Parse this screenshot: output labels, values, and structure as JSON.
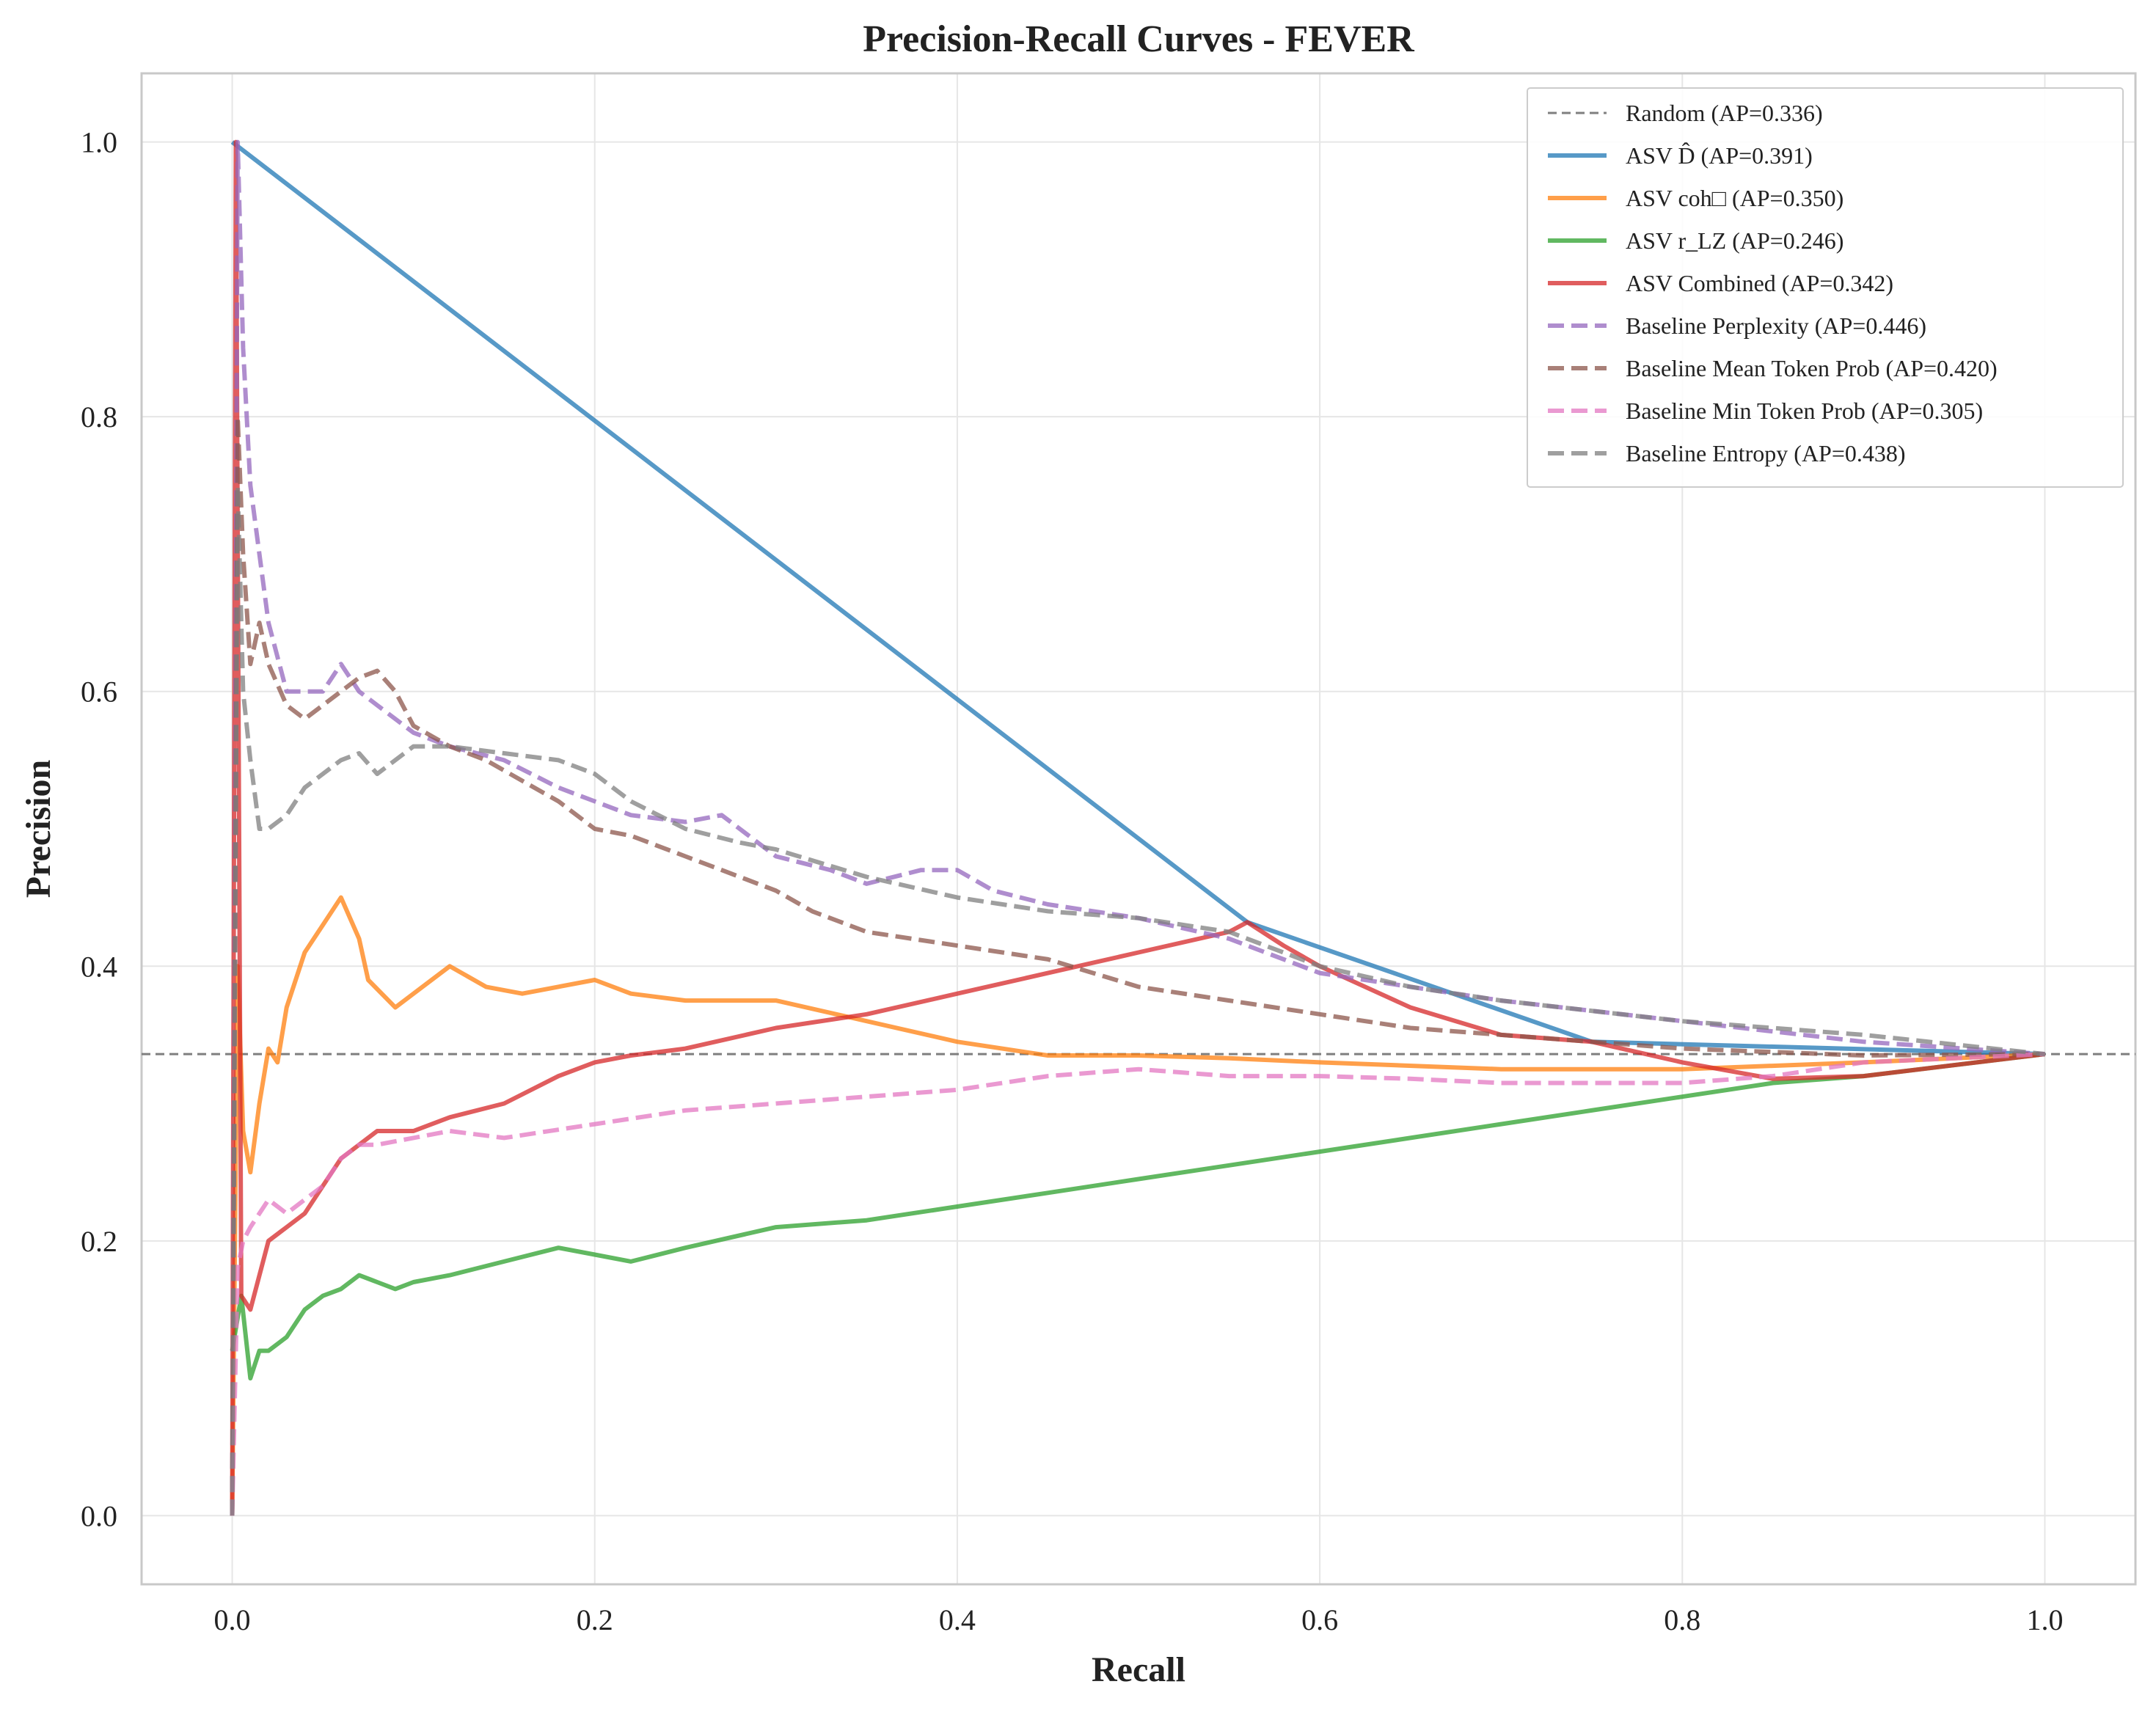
{
  "chart_data": {
    "type": "line",
    "title": "Precision-Recall Curves - FEVER",
    "xlabel": "Recall",
    "ylabel": "Precision",
    "xlim": [
      -0.05,
      1.05
    ],
    "ylim": [
      -0.05,
      1.05
    ],
    "xticks": [
      0.0,
      0.2,
      0.4,
      0.6,
      0.8,
      1.0
    ],
    "yticks": [
      0.0,
      0.2,
      0.4,
      0.6,
      0.8,
      1.0
    ],
    "xtick_labels": [
      "0.0",
      "0.2",
      "0.4",
      "0.6",
      "0.8",
      "1.0"
    ],
    "ytick_labels": [
      "0.0",
      "0.2",
      "0.4",
      "0.6",
      "0.8",
      "1.0"
    ],
    "grid": true,
    "legend_position": "top-right",
    "series": [
      {
        "name": "Random (AP=0.336)",
        "color": "#7f7f7f",
        "style": "dashed-thin",
        "x": [
          -0.05,
          1.05
        ],
        "y": [
          0.336,
          0.336
        ]
      },
      {
        "name": "ASV D̂ (AP=0.391)",
        "color": "#1f77b4",
        "style": "solid",
        "x": [
          0.0,
          0.56,
          0.75,
          1.0
        ],
        "y": [
          1.0,
          0.432,
          0.345,
          0.336
        ]
      },
      {
        "name": "ASV coh□ (AP=0.350)",
        "color": "#ff7f0e",
        "style": "solid",
        "x": [
          0.0,
          0.003,
          0.006,
          0.01,
          0.015,
          0.02,
          0.025,
          0.03,
          0.04,
          0.05,
          0.06,
          0.07,
          0.075,
          0.09,
          0.1,
          0.12,
          0.14,
          0.16,
          0.2,
          0.22,
          0.25,
          0.3,
          0.35,
          0.4,
          0.45,
          0.5,
          0.55,
          0.6,
          0.7,
          0.8,
          0.9,
          1.0
        ],
        "y": [
          0.0,
          0.4,
          0.28,
          0.25,
          0.3,
          0.34,
          0.33,
          0.37,
          0.41,
          0.43,
          0.45,
          0.42,
          0.39,
          0.37,
          0.38,
          0.4,
          0.385,
          0.38,
          0.39,
          0.38,
          0.375,
          0.375,
          0.36,
          0.345,
          0.335,
          0.335,
          0.333,
          0.33,
          0.325,
          0.325,
          0.33,
          0.336
        ]
      },
      {
        "name": "ASV r_LZ (AP=0.246)",
        "color": "#2ca02c",
        "style": "solid",
        "x": [
          0.0,
          0.005,
          0.01,
          0.015,
          0.02,
          0.03,
          0.04,
          0.05,
          0.06,
          0.07,
          0.08,
          0.09,
          0.1,
          0.12,
          0.15,
          0.18,
          0.2,
          0.22,
          0.25,
          0.3,
          0.35,
          0.4,
          0.45,
          0.5,
          0.55,
          0.6,
          0.65,
          0.7,
          0.75,
          0.8,
          0.85,
          0.9,
          1.0
        ],
        "y": [
          0.12,
          0.16,
          0.1,
          0.12,
          0.12,
          0.13,
          0.15,
          0.16,
          0.165,
          0.175,
          0.17,
          0.165,
          0.17,
          0.175,
          0.185,
          0.195,
          0.19,
          0.185,
          0.195,
          0.21,
          0.215,
          0.225,
          0.235,
          0.245,
          0.255,
          0.265,
          0.275,
          0.285,
          0.295,
          0.305,
          0.315,
          0.32,
          0.336
        ]
      },
      {
        "name": "ASV Combined (AP=0.342)",
        "color": "#d62728",
        "style": "solid",
        "x": [
          0.0,
          0.002,
          0.005,
          0.01,
          0.02,
          0.03,
          0.04,
          0.05,
          0.06,
          0.07,
          0.08,
          0.1,
          0.12,
          0.15,
          0.18,
          0.2,
          0.22,
          0.25,
          0.3,
          0.35,
          0.4,
          0.45,
          0.5,
          0.55,
          0.56,
          0.58,
          0.6,
          0.65,
          0.7,
          0.75,
          0.8,
          0.85,
          0.9,
          1.0
        ],
        "y": [
          0.0,
          1.0,
          0.16,
          0.15,
          0.2,
          0.21,
          0.22,
          0.24,
          0.26,
          0.27,
          0.28,
          0.28,
          0.29,
          0.3,
          0.32,
          0.33,
          0.335,
          0.34,
          0.355,
          0.365,
          0.38,
          0.395,
          0.41,
          0.425,
          0.432,
          0.415,
          0.4,
          0.37,
          0.35,
          0.345,
          0.33,
          0.318,
          0.32,
          0.336
        ]
      },
      {
        "name": "Baseline Perplexity (AP=0.446)",
        "color": "#9467bd",
        "style": "dashed",
        "x": [
          0.0,
          0.003,
          0.006,
          0.01,
          0.015,
          0.02,
          0.03,
          0.04,
          0.05,
          0.06,
          0.07,
          0.08,
          0.1,
          0.12,
          0.15,
          0.18,
          0.2,
          0.22,
          0.25,
          0.27,
          0.3,
          0.33,
          0.35,
          0.38,
          0.4,
          0.42,
          0.45,
          0.5,
          0.55,
          0.6,
          0.65,
          0.7,
          0.8,
          0.9,
          1.0
        ],
        "y": [
          0.0,
          1.0,
          0.85,
          0.75,
          0.7,
          0.65,
          0.6,
          0.6,
          0.6,
          0.62,
          0.6,
          0.59,
          0.57,
          0.56,
          0.55,
          0.53,
          0.52,
          0.51,
          0.505,
          0.51,
          0.48,
          0.47,
          0.46,
          0.47,
          0.47,
          0.455,
          0.445,
          0.435,
          0.42,
          0.395,
          0.385,
          0.375,
          0.36,
          0.345,
          0.336
        ]
      },
      {
        "name": "Baseline Mean Token Prob (AP=0.420)",
        "color": "#8c564b",
        "style": "dashed",
        "x": [
          0.0,
          0.003,
          0.006,
          0.01,
          0.015,
          0.02,
          0.03,
          0.04,
          0.05,
          0.06,
          0.07,
          0.08,
          0.09,
          0.1,
          0.12,
          0.14,
          0.16,
          0.18,
          0.2,
          0.22,
          0.25,
          0.28,
          0.3,
          0.32,
          0.35,
          0.4,
          0.45,
          0.5,
          0.55,
          0.6,
          0.65,
          0.7,
          0.8,
          0.9,
          1.0
        ],
        "y": [
          0.0,
          0.8,
          0.7,
          0.62,
          0.65,
          0.62,
          0.59,
          0.58,
          0.59,
          0.6,
          0.61,
          0.615,
          0.6,
          0.575,
          0.56,
          0.55,
          0.535,
          0.52,
          0.5,
          0.495,
          0.48,
          0.465,
          0.455,
          0.44,
          0.425,
          0.415,
          0.405,
          0.385,
          0.375,
          0.365,
          0.355,
          0.35,
          0.34,
          0.335,
          0.336
        ]
      },
      {
        "name": "Baseline Min Token Prob (AP=0.305)",
        "color": "#e377c2",
        "style": "dashed",
        "x": [
          0.0,
          0.003,
          0.006,
          0.01,
          0.015,
          0.02,
          0.03,
          0.04,
          0.05,
          0.06,
          0.07,
          0.08,
          0.1,
          0.12,
          0.15,
          0.2,
          0.25,
          0.3,
          0.35,
          0.4,
          0.45,
          0.5,
          0.55,
          0.6,
          0.65,
          0.7,
          0.75,
          0.8,
          0.85,
          0.9,
          1.0
        ],
        "y": [
          0.0,
          0.18,
          0.2,
          0.21,
          0.22,
          0.23,
          0.22,
          0.23,
          0.24,
          0.26,
          0.27,
          0.27,
          0.275,
          0.28,
          0.275,
          0.285,
          0.295,
          0.3,
          0.305,
          0.31,
          0.32,
          0.325,
          0.32,
          0.32,
          0.318,
          0.315,
          0.315,
          0.315,
          0.32,
          0.33,
          0.336
        ]
      },
      {
        "name": "Baseline Entropy (AP=0.438)",
        "color": "#7f7f7f",
        "style": "dashed",
        "x": [
          0.0,
          0.003,
          0.006,
          0.01,
          0.015,
          0.02,
          0.03,
          0.04,
          0.05,
          0.06,
          0.07,
          0.08,
          0.1,
          0.12,
          0.15,
          0.18,
          0.2,
          0.22,
          0.25,
          0.28,
          0.3,
          0.35,
          0.4,
          0.45,
          0.5,
          0.55,
          0.6,
          0.65,
          0.7,
          0.8,
          0.9,
          1.0
        ],
        "y": [
          0.0,
          0.75,
          0.6,
          0.55,
          0.5,
          0.5,
          0.51,
          0.53,
          0.54,
          0.55,
          0.555,
          0.54,
          0.56,
          0.56,
          0.555,
          0.55,
          0.54,
          0.52,
          0.5,
          0.49,
          0.485,
          0.465,
          0.45,
          0.44,
          0.435,
          0.425,
          0.4,
          0.385,
          0.375,
          0.36,
          0.35,
          0.336
        ]
      }
    ]
  }
}
